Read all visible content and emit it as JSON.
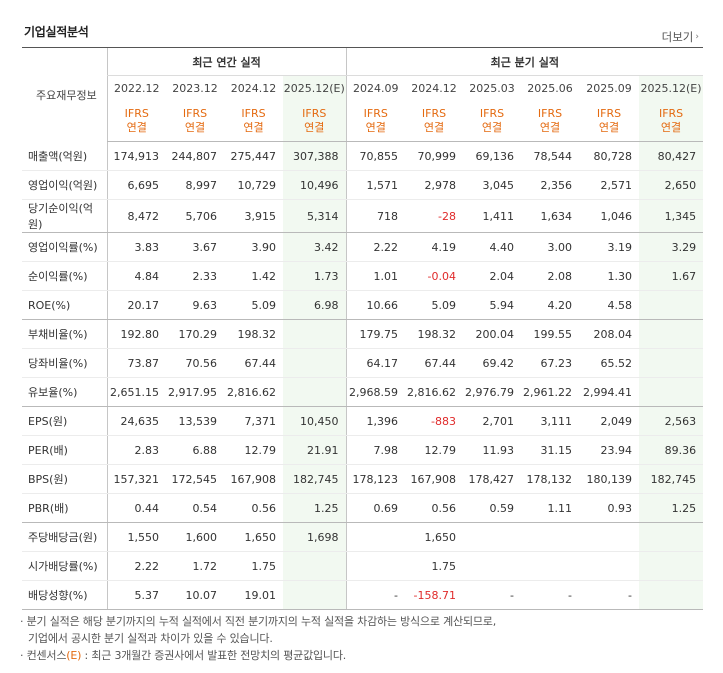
{
  "title": "기업실적분석",
  "more_label": "더보기",
  "label_header": "주요재무정보",
  "group_headers": {
    "annual": "최근 연간 실적",
    "quarterly": "최근 분기 실적"
  },
  "periods": [
    "2022.12",
    "2023.12",
    "2024.12",
    "2025.12(E)",
    "2024.09",
    "2024.12",
    "2025.03",
    "2025.06",
    "2025.09",
    "2025.12(E)"
  ],
  "ifrs_line1": "IFRS",
  "ifrs_line2": "연결",
  "rows": [
    {
      "label": "매출액(억원)",
      "values": [
        "174,913",
        "244,807",
        "275,447",
        "307,388",
        "70,855",
        "70,999",
        "69,136",
        "78,544",
        "80,728",
        "80,427"
      ]
    },
    {
      "label": "영업이익(억원)",
      "values": [
        "6,695",
        "8,997",
        "10,729",
        "10,496",
        "1,571",
        "2,978",
        "3,045",
        "2,356",
        "2,571",
        "2,650"
      ]
    },
    {
      "label": "당기순이익(억원)",
      "values": [
        "8,472",
        "5,706",
        "3,915",
        "5,314",
        "718",
        "-28",
        "1,411",
        "1,634",
        "1,046",
        "1,345"
      ]
    },
    {
      "label": "영업이익률(%)",
      "values": [
        "3.83",
        "3.67",
        "3.90",
        "3.42",
        "2.22",
        "4.19",
        "4.40",
        "3.00",
        "3.19",
        "3.29"
      ]
    },
    {
      "label": "순이익률(%)",
      "values": [
        "4.84",
        "2.33",
        "1.42",
        "1.73",
        "1.01",
        "-0.04",
        "2.04",
        "2.08",
        "1.30",
        "1.67"
      ]
    },
    {
      "label": "ROE(%)",
      "values": [
        "20.17",
        "9.63",
        "5.09",
        "6.98",
        "10.66",
        "5.09",
        "5.94",
        "4.20",
        "4.58",
        ""
      ]
    },
    {
      "label": "부채비율(%)",
      "values": [
        "192.80",
        "170.29",
        "198.32",
        "",
        "179.75",
        "198.32",
        "200.04",
        "199.55",
        "208.04",
        ""
      ]
    },
    {
      "label": "당좌비율(%)",
      "values": [
        "73.87",
        "70.56",
        "67.44",
        "",
        "64.17",
        "67.44",
        "69.42",
        "67.23",
        "65.52",
        ""
      ]
    },
    {
      "label": "유보율(%)",
      "values": [
        "2,651.15",
        "2,917.95",
        "2,816.62",
        "",
        "2,968.59",
        "2,816.62",
        "2,976.79",
        "2,961.22",
        "2,994.41",
        ""
      ]
    },
    {
      "label": "EPS(원)",
      "values": [
        "24,635",
        "13,539",
        "7,371",
        "10,450",
        "1,396",
        "-883",
        "2,701",
        "3,111",
        "2,049",
        "2,563"
      ]
    },
    {
      "label": "PER(배)",
      "values": [
        "2.83",
        "6.88",
        "12.79",
        "21.91",
        "7.98",
        "12.79",
        "11.93",
        "31.15",
        "23.94",
        "89.36"
      ]
    },
    {
      "label": "BPS(원)",
      "values": [
        "157,321",
        "172,545",
        "167,908",
        "182,745",
        "178,123",
        "167,908",
        "178,427",
        "178,132",
        "180,139",
        "182,745"
      ]
    },
    {
      "label": "PBR(배)",
      "values": [
        "0.44",
        "0.54",
        "0.56",
        "1.25",
        "0.69",
        "0.56",
        "0.59",
        "1.11",
        "0.93",
        "1.25"
      ]
    },
    {
      "label": "주당배당금(원)",
      "values": [
        "1,550",
        "1,600",
        "1,650",
        "1,698",
        "",
        "1,650",
        "",
        "",
        "",
        ""
      ]
    },
    {
      "label": "시가배당률(%)",
      "values": [
        "2.22",
        "1.72",
        "1.75",
        "",
        "",
        "1.75",
        "",
        "",
        "",
        ""
      ]
    },
    {
      "label": "배당성향(%)",
      "values": [
        "5.37",
        "10.07",
        "19.01",
        "",
        "-",
        "-158.71",
        "-",
        "-",
        "-",
        ""
      ]
    }
  ],
  "notes": {
    "line1": "분기 실적은 해당 분기까지의 누적 실적에서 직전 분기까지의 누적 실적을 차감하는 방식으로 계산되므로,",
    "line2": "기업에서 공시한 분기 실적과 차이가 있을 수 있습니다.",
    "line3_prefix": "컨센서스",
    "line3_e": "(E)",
    "line3_suffix": ": 최근 3개월간 증권사에서 발표한 전망치의 평균값입니다."
  },
  "colors": {
    "accent_orange": "#e46a10",
    "negative_red": "#e02b2b",
    "estimate_bg": "#f2f9f1"
  }
}
